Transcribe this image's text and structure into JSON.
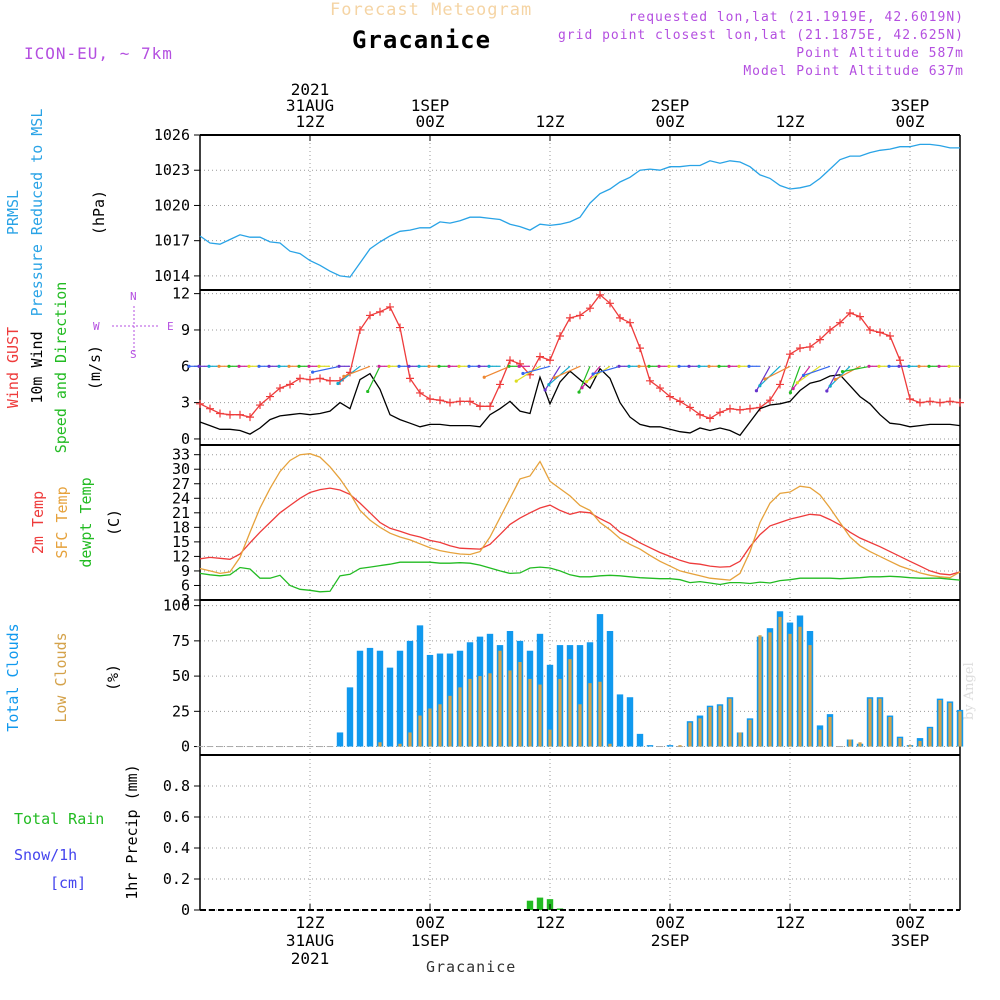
{
  "header": {
    "title": "Forecast Meteogram",
    "location": "Gracanice",
    "model": "ICON-EU, ~ 7km",
    "requested": "requested lon,lat (21.1919E, 42.6019N)",
    "gridpoint": "grid point closest lon,lat (21.1875E, 42.625N)",
    "point_alt": "Point Altitude 587m",
    "model_alt": "Model Point Altitude 637m"
  },
  "footer": {
    "location": "Gracanice",
    "credit": "by Angel"
  },
  "time_axis": {
    "top": [
      {
        "t": 12,
        "lines": [
          "2021",
          "31AUG",
          "12Z"
        ]
      },
      {
        "t": 24,
        "lines": [
          "1SEP",
          "00Z"
        ]
      },
      {
        "t": 36,
        "lines": [
          "12Z"
        ]
      },
      {
        "t": 48,
        "lines": [
          "2SEP",
          "00Z"
        ]
      },
      {
        "t": 60,
        "lines": [
          "12Z"
        ]
      },
      {
        "t": 72,
        "lines": [
          "3SEP",
          "00Z"
        ]
      }
    ],
    "bottom": [
      {
        "t": 12,
        "lines": [
          "12Z",
          "31AUG",
          "2021"
        ]
      },
      {
        "t": 24,
        "lines": [
          "00Z",
          "1SEP"
        ]
      },
      {
        "t": 36,
        "lines": [
          "12Z"
        ]
      },
      {
        "t": 48,
        "lines": [
          "00Z",
          "2SEP"
        ]
      },
      {
        "t": 60,
        "lines": [
          "12Z"
        ]
      },
      {
        "t": 72,
        "lines": [
          "00Z",
          "3SEP"
        ]
      }
    ],
    "t_range": [
      1,
      77
    ]
  },
  "colors": {
    "prmsl": "#29a3e6",
    "gust": "#ee3b3b",
    "wind": "#000000",
    "temp2m": "#ee3b3b",
    "sfc": "#e6a23c",
    "dewpt": "#22bb22",
    "total_clouds": "#1199ee",
    "low_clouds": "#d4a24a",
    "rain": "#22bb22",
    "snow": "#4444ee",
    "label_purple": "#b44fe0"
  },
  "chart_data": [
    {
      "type": "line",
      "id": "pressure",
      "ylabels": [
        {
          "text": "PRMSL",
          "color": "#29a3e6"
        },
        {
          "text": "Pressure Reduced to MSL",
          "color": "#29a3e6"
        },
        {
          "text": "(hPa)",
          "color": "#000000"
        }
      ],
      "ylim": [
        1012.8,
        1026.0
      ],
      "yticks": [
        1014,
        1017,
        1020,
        1023,
        1026
      ],
      "series": [
        {
          "name": "PRMSL",
          "x": [
            1,
            2,
            3,
            4,
            5,
            6,
            7,
            8,
            9,
            10,
            11,
            12,
            13,
            14,
            15,
            16,
            17,
            18,
            19,
            20,
            21,
            22,
            23,
            24,
            25,
            26,
            27,
            28,
            29,
            30,
            31,
            32,
            33,
            34,
            35,
            36,
            37,
            38,
            39,
            40,
            41,
            42,
            43,
            44,
            45,
            46,
            47,
            48,
            49,
            50,
            51,
            52,
            53,
            54,
            55,
            56,
            57,
            58,
            59,
            60,
            61,
            62,
            63,
            64,
            65,
            66,
            67,
            68,
            69,
            70,
            71,
            72,
            73,
            74,
            75,
            76,
            77
          ],
          "values": [
            1017.4,
            1016.8,
            1016.7,
            1017.1,
            1017.5,
            1017.3,
            1017.3,
            1016.9,
            1016.8,
            1016.1,
            1015.9,
            1015.3,
            1014.9,
            1014.4,
            1014.0,
            1013.9,
            1015.1,
            1016.3,
            1016.9,
            1017.4,
            1017.8,
            1017.9,
            1018.1,
            1018.1,
            1018.6,
            1018.5,
            1018.7,
            1019.0,
            1019.0,
            1018.9,
            1018.8,
            1018.4,
            1018.2,
            1017.9,
            1018.4,
            1018.3,
            1018.4,
            1018.6,
            1019.0,
            1020.2,
            1021.0,
            1021.4,
            1022.0,
            1022.4,
            1023.0,
            1023.1,
            1023.0,
            1023.3,
            1023.3,
            1023.4,
            1023.4,
            1023.8,
            1023.6,
            1023.8,
            1023.7,
            1023.3,
            1022.6,
            1022.3,
            1021.7,
            1021.4,
            1021.5,
            1021.7,
            1022.3,
            1023.1,
            1023.9,
            1024.2,
            1024.2,
            1024.5,
            1024.7,
            1024.8,
            1025.0,
            1025.0,
            1025.2,
            1025.2,
            1025.1,
            1024.9,
            1024.9
          ]
        }
      ]
    },
    {
      "type": "line",
      "id": "wind",
      "ylabels": [
        {
          "text": "Wind GUST",
          "color": "#ee3b3b"
        },
        {
          "text": "10m Wind",
          "color": "#000000"
        },
        {
          "text": "Speed and Direction",
          "color": "#22bb22"
        },
        {
          "text": "(m/s)",
          "color": "#000000"
        }
      ],
      "compass": {
        "N": "N",
        "W": "W",
        "E": "E",
        "S": "S"
      },
      "ylim": [
        -0.5,
        12.3
      ],
      "yticks": [
        0,
        3,
        6,
        9,
        12
      ],
      "series": [
        {
          "name": "Wind GUST",
          "values": [
            2.9,
            2.5,
            2.1,
            2.0,
            2.0,
            1.8,
            2.8,
            3.5,
            4.2,
            4.5,
            5.0,
            4.9,
            5.0,
            4.8,
            4.8,
            5.5,
            9.0,
            10.2,
            10.5,
            10.9,
            9.2,
            5.0,
            3.8,
            3.3,
            3.2,
            3.0,
            3.1,
            3.1,
            2.7,
            2.7,
            4.5,
            6.5,
            6.2,
            5.3,
            6.8,
            6.5,
            8.5,
            10.0,
            10.2,
            10.8,
            11.9,
            11.2,
            10.0,
            9.6,
            7.5,
            4.8,
            4.2,
            3.5,
            3.1,
            2.6,
            2.0,
            1.7,
            2.2,
            2.5,
            2.4,
            2.5,
            2.6,
            3.2,
            4.5,
            7.0,
            7.5,
            7.6,
            8.2,
            9.0,
            9.6,
            10.4,
            10.1,
            9.0,
            8.8,
            8.5,
            6.5,
            3.3,
            3.0,
            3.1,
            3.0,
            3.1,
            3.0
          ]
        },
        {
          "name": "10m Wind",
          "values": [
            1.4,
            1.1,
            0.8,
            0.8,
            0.7,
            0.4,
            0.9,
            1.6,
            1.9,
            2.0,
            2.1,
            2.0,
            2.1,
            2.3,
            3.0,
            2.5,
            4.9,
            5.4,
            4.1,
            2.0,
            1.6,
            1.3,
            1.0,
            1.2,
            1.2,
            1.1,
            1.1,
            1.1,
            1.0,
            2.0,
            2.5,
            3.1,
            2.3,
            2.1,
            5.1,
            2.9,
            4.7,
            5.6,
            4.9,
            4.2,
            5.8,
            5.0,
            3.0,
            1.8,
            1.2,
            1.0,
            1.0,
            0.8,
            0.6,
            0.5,
            0.9,
            0.7,
            0.9,
            0.7,
            0.3,
            1.4,
            2.5,
            2.8,
            2.9,
            3.1,
            4.0,
            4.6,
            4.8,
            5.2,
            5.3,
            4.4,
            3.5,
            2.9,
            2.0,
            1.3,
            1.2,
            1.0,
            1.1,
            1.2,
            1.2,
            1.2,
            1.1
          ]
        }
      ]
    },
    {
      "type": "line",
      "id": "temperature",
      "ylabels": [
        {
          "text": "2m Temp",
          "color": "#ee3b3b"
        },
        {
          "text": "SFC Temp",
          "color": "#e6a23c"
        },
        {
          "text": "dewpt Temp",
          "color": "#22bb22"
        },
        {
          "text": "(C)",
          "color": "#000000"
        }
      ],
      "ylim": [
        3,
        35
      ],
      "yticks": [
        3,
        6,
        9,
        12,
        15,
        18,
        21,
        24,
        27,
        30,
        33
      ],
      "series": [
        {
          "name": "2m Temp",
          "values": [
            11.5,
            11.8,
            11.6,
            11.4,
            12.5,
            14.8,
            17.0,
            19.0,
            21.0,
            22.5,
            24.0,
            25.2,
            25.8,
            26.1,
            25.7,
            24.8,
            23.0,
            21.0,
            19.0,
            17.8,
            17.2,
            16.5,
            16.0,
            15.3,
            14.9,
            14.2,
            13.7,
            13.6,
            13.5,
            14.5,
            16.5,
            18.6,
            19.9,
            21.0,
            22.0,
            22.6,
            21.5,
            20.7,
            21.2,
            21.0,
            19.8,
            18.8,
            17.0,
            16.0,
            14.8,
            13.8,
            12.8,
            12.0,
            11.2,
            10.6,
            10.4,
            10.0,
            9.8,
            9.9,
            11.0,
            14.0,
            16.5,
            18.3,
            19.0,
            19.7,
            20.2,
            20.7,
            20.5,
            19.6,
            18.5,
            17.0,
            15.8,
            14.9,
            14.0,
            13.0,
            12.0,
            11.0,
            10.0,
            9.0,
            8.4,
            8.2,
            8.8
          ]
        },
        {
          "name": "SFC Temp",
          "values": [
            9.5,
            9.0,
            8.5,
            8.8,
            11.8,
            17.0,
            22.0,
            26.0,
            29.5,
            31.8,
            33.0,
            33.2,
            32.5,
            30.5,
            28.0,
            25.0,
            21.5,
            19.5,
            18.0,
            16.8,
            16.0,
            15.4,
            14.6,
            13.8,
            13.2,
            12.8,
            12.5,
            12.4,
            13.0,
            16.0,
            20.0,
            24.0,
            28.0,
            28.6,
            31.6,
            27.5,
            26.0,
            24.5,
            22.5,
            21.5,
            19.0,
            17.5,
            15.7,
            14.5,
            13.5,
            12.2,
            11.0,
            10.0,
            9.0,
            8.5,
            8.0,
            7.5,
            7.3,
            7.1,
            8.5,
            13.0,
            19.0,
            23.0,
            25.0,
            25.3,
            26.5,
            26.2,
            24.7,
            22.0,
            19.0,
            16.0,
            14.2,
            13.0,
            12.0,
            11.0,
            10.0,
            9.3,
            8.6,
            8.1,
            7.8,
            7.6,
            8.8
          ]
        },
        {
          "name": "dewpt Temp",
          "values": [
            8.5,
            8.2,
            8.0,
            8.2,
            9.7,
            9.4,
            7.5,
            7.5,
            8.1,
            6.0,
            5.2,
            5.0,
            4.7,
            4.8,
            8.0,
            8.3,
            9.5,
            9.8,
            10.1,
            10.4,
            10.8,
            10.8,
            10.8,
            10.8,
            10.6,
            10.6,
            10.7,
            10.6,
            10.2,
            9.6,
            9.0,
            8.5,
            8.6,
            9.6,
            9.8,
            9.6,
            9.0,
            8.2,
            7.8,
            7.8,
            8.0,
            8.1,
            8.0,
            7.8,
            7.6,
            7.5,
            7.4,
            7.4,
            7.2,
            6.6,
            6.8,
            6.5,
            6.2,
            6.6,
            6.6,
            6.4,
            6.7,
            6.5,
            7.0,
            7.2,
            7.5,
            7.5,
            7.5,
            7.5,
            7.4,
            7.5,
            7.6,
            7.8,
            7.8,
            7.9,
            7.8,
            7.6,
            7.5,
            7.5,
            7.5,
            7.3,
            7.1
          ]
        }
      ]
    },
    {
      "type": "bar",
      "id": "clouds",
      "ylabels": [
        {
          "text": "Total Clouds",
          "color": "#1199ee"
        },
        {
          "text": "Low Clouds",
          "color": "#d4a24a"
        },
        {
          "text": "(%)",
          "color": "#000000"
        }
      ],
      "ylim": [
        -6,
        104
      ],
      "yticks": [
        0,
        25,
        50,
        75,
        100
      ],
      "series": [
        {
          "name": "Total Clouds",
          "values": [
            0,
            0,
            0,
            0,
            0,
            0,
            0,
            0,
            0,
            0,
            0,
            0,
            0,
            0,
            10,
            42,
            68,
            70,
            68,
            56,
            68,
            75,
            86,
            65,
            66,
            66,
            68,
            74,
            78,
            80,
            72,
            82,
            75,
            68,
            80,
            58,
            72,
            72,
            72,
            74,
            94,
            82,
            37,
            35,
            9,
            1,
            0,
            1,
            0,
            18,
            22,
            29,
            30,
            35,
            10,
            20,
            78,
            84,
            96,
            88,
            93,
            82,
            15,
            23,
            0,
            5,
            2,
            35,
            35,
            22,
            7,
            1,
            6,
            14,
            34,
            32,
            26
          ]
        },
        {
          "name": "Low Clouds",
          "values": [
            0,
            0,
            0,
            0,
            0,
            0,
            0,
            0,
            0,
            0,
            0,
            0,
            0,
            0,
            0,
            0,
            0,
            0,
            3,
            0,
            2,
            10,
            22,
            27,
            30,
            36,
            42,
            48,
            50,
            52,
            68,
            54,
            60,
            48,
            44,
            12,
            48,
            62,
            30,
            45,
            46,
            2,
            0,
            0,
            0,
            0,
            0,
            0,
            1,
            17,
            20,
            28,
            29,
            34,
            10,
            19,
            79,
            81,
            92,
            80,
            85,
            72,
            12,
            21,
            0,
            5,
            3,
            34,
            34,
            21,
            6,
            1,
            4,
            13,
            33,
            31,
            25
          ]
        }
      ]
    },
    {
      "type": "bar",
      "id": "precip",
      "ylabels": [
        {
          "text": "1hr Precip (mm)",
          "color": "#000000"
        },
        {
          "text": "Total  Rain",
          "color": "#22bb22"
        },
        {
          "text": "Snow/1h",
          "color": "#4444ee"
        },
        {
          "text": "[cm]",
          "color": "#4444ee"
        }
      ],
      "ylim": [
        0,
        1.0
      ],
      "yticks": [
        0,
        0.2,
        0.4,
        0.6,
        0.8
      ],
      "series": [
        {
          "name": "Total Rain",
          "x": [
            34,
            35,
            36,
            37
          ],
          "values": [
            0.06,
            0.08,
            0.07,
            0.01
          ]
        }
      ]
    }
  ]
}
